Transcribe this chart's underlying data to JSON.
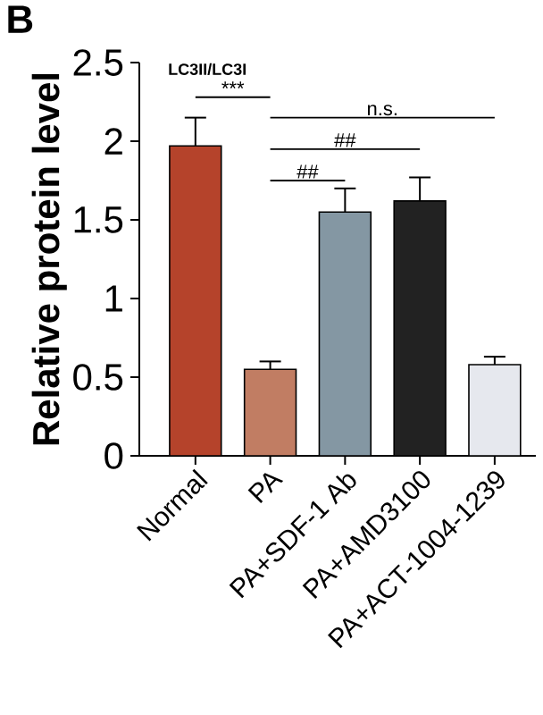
{
  "chart_data": {
    "type": "bar",
    "title": "LC3II/LC3I",
    "ylabel": "Relative protein level",
    "categories": [
      "Normal",
      "PA",
      "PA+SDF-1 Ab",
      "PA+AMD3100",
      "PA+ACT-1004-1239"
    ],
    "values": [
      1.97,
      0.55,
      1.55,
      1.62,
      0.58
    ],
    "errors": [
      0.18,
      0.05,
      0.15,
      0.15,
      0.05
    ],
    "colors": [
      "#b5432b",
      "#c17d63",
      "#8497a3",
      "#222222",
      "#e6e8ee"
    ],
    "ylim": [
      0,
      2.5
    ],
    "yticks": [
      0,
      0.5,
      1,
      1.5,
      2,
      2.5
    ],
    "annotations": [
      "B",
      "***",
      "##",
      "##",
      "n.s."
    ]
  }
}
